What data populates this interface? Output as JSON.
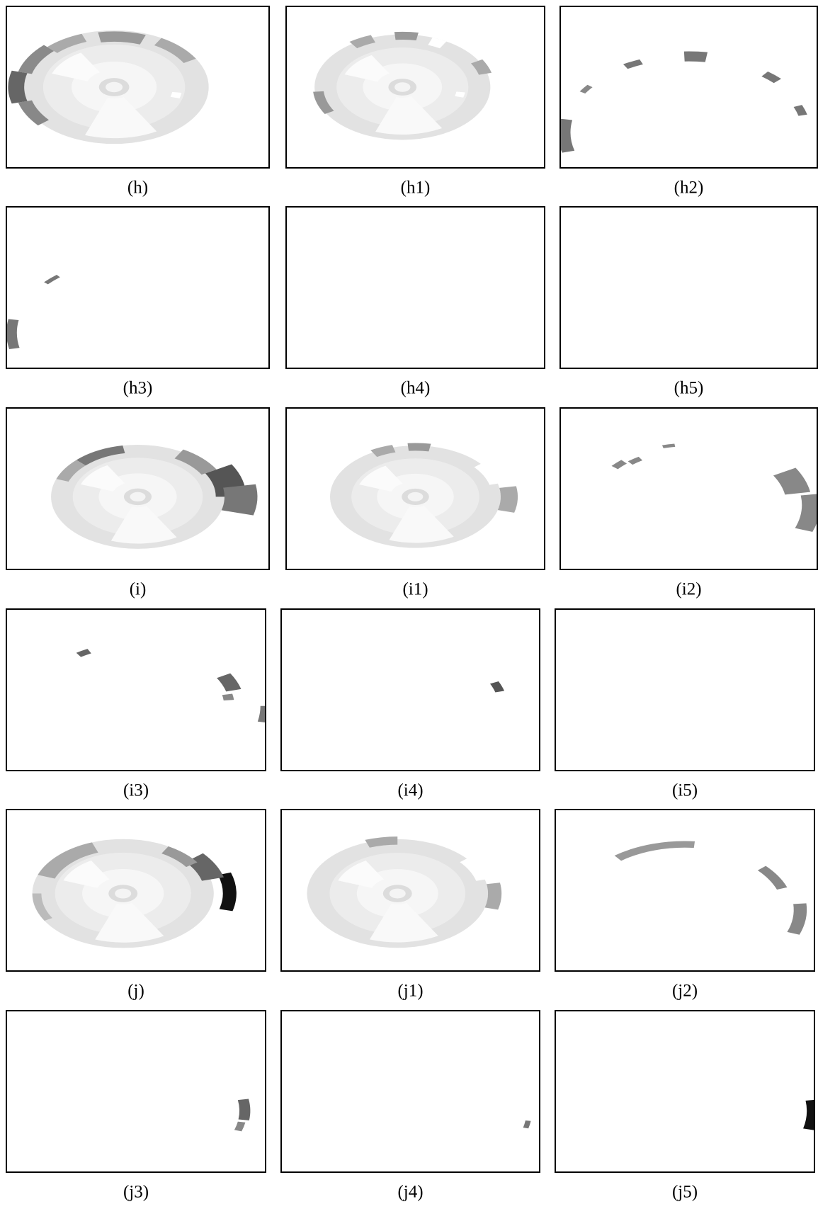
{
  "panels": [
    {
      "label": "(h)"
    },
    {
      "label": "(h1)"
    },
    {
      "label": "(h2)"
    },
    {
      "label": "(h3)"
    },
    {
      "label": "(h4)"
    },
    {
      "label": "(h5)"
    },
    {
      "label": "(i)"
    },
    {
      "label": "(i1)"
    },
    {
      "label": "(i2)"
    },
    {
      "label": "(i3)"
    },
    {
      "label": "(i4)"
    },
    {
      "label": "(i5)"
    },
    {
      "label": "(j)"
    },
    {
      "label": "(j1)"
    },
    {
      "label": "(j2)"
    },
    {
      "label": "(j3)"
    },
    {
      "label": "(j4)"
    },
    {
      "label": "(j5)"
    }
  ]
}
